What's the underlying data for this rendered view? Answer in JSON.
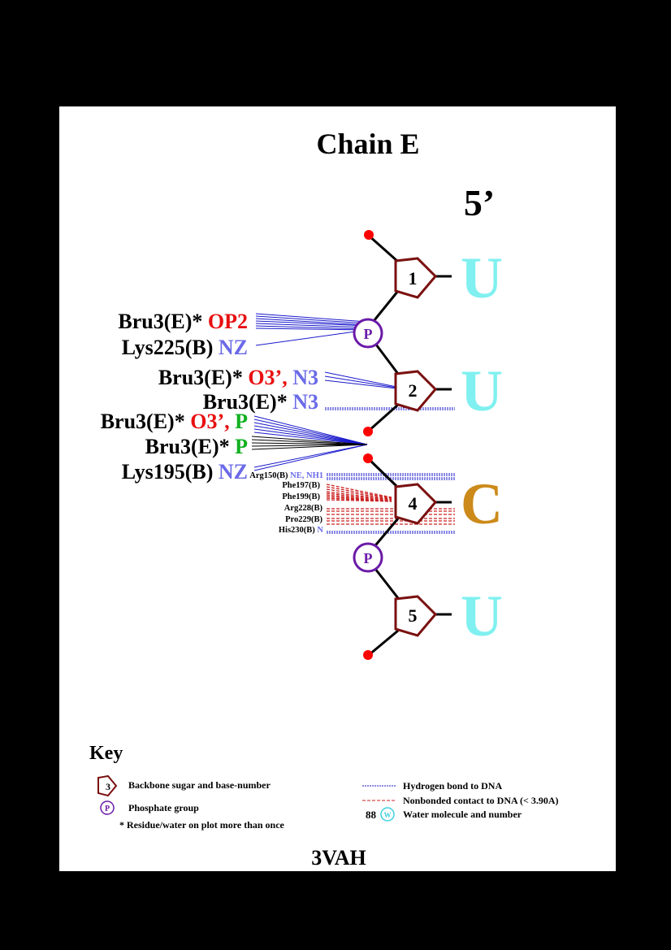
{
  "title": "Chain E",
  "strand_end": "5’",
  "footer": "3VAH",
  "colors": {
    "background": "#000000",
    "sugar": "#7a1010",
    "phosphate": "#6a1aa8",
    "hbond": "#1a1acc",
    "nonbonded": "#cc2222",
    "base_U": "#80f0f0",
    "base_C": "#cc8a1a",
    "atom_red": "#e81010",
    "atom_blue": "#6a6ae8",
    "atom_green": "#10b020",
    "phospho_dot": "#ff0000"
  },
  "nucleotides": [
    {
      "number": "1",
      "base": "U"
    },
    {
      "number": "2",
      "base": "U"
    },
    {
      "number": "4",
      "base": "C"
    },
    {
      "number": "5",
      "base": "U"
    }
  ],
  "phosphate_label": "P",
  "labels": {
    "l1": {
      "res": "Bru3(E)*",
      "atom1": "OP2"
    },
    "l2": {
      "res": "Lys225(B)",
      "atom1": "NZ"
    },
    "l3": {
      "res": "Bru3(E)*",
      "atom1": "O3’,",
      "atom2": "N3"
    },
    "l4": {
      "res": "Bru3(E)*",
      "atom1": "N3"
    },
    "l5": {
      "res": "Bru3(E)*",
      "atom1": "O3’,",
      "atom2": "P"
    },
    "l6": {
      "res": "Bru3(E)*",
      "atom1": "P"
    },
    "l7": {
      "res": "Lys195(B)",
      "atom1": "NZ"
    }
  },
  "small_labels": {
    "s1": {
      "res": "Arg150(B)",
      "atom": "NE, NH1"
    },
    "s2": {
      "res": "Phe197(B)"
    },
    "s3": {
      "res": "Phe199(B)"
    },
    "s4": {
      "res": "Arg228(B)"
    },
    "s5": {
      "res": "Pro229(B)"
    },
    "s6": {
      "res": "His230(B)",
      "atom": "N"
    }
  },
  "key": {
    "title": "Key",
    "sugar_sample": "3",
    "sugar_text": "Backbone sugar and base-number",
    "phosphate_sample": "P",
    "phosphate_text": "Phosphate group",
    "star_text": "* Residue/water on plot more than once",
    "hbond_text": "Hydrogen bond to DNA",
    "nonbond_text": "Nonbonded contact to DNA (< 3.90A)",
    "water_number": "88",
    "water_sample": "W",
    "water_text": "Water molecule and number"
  }
}
